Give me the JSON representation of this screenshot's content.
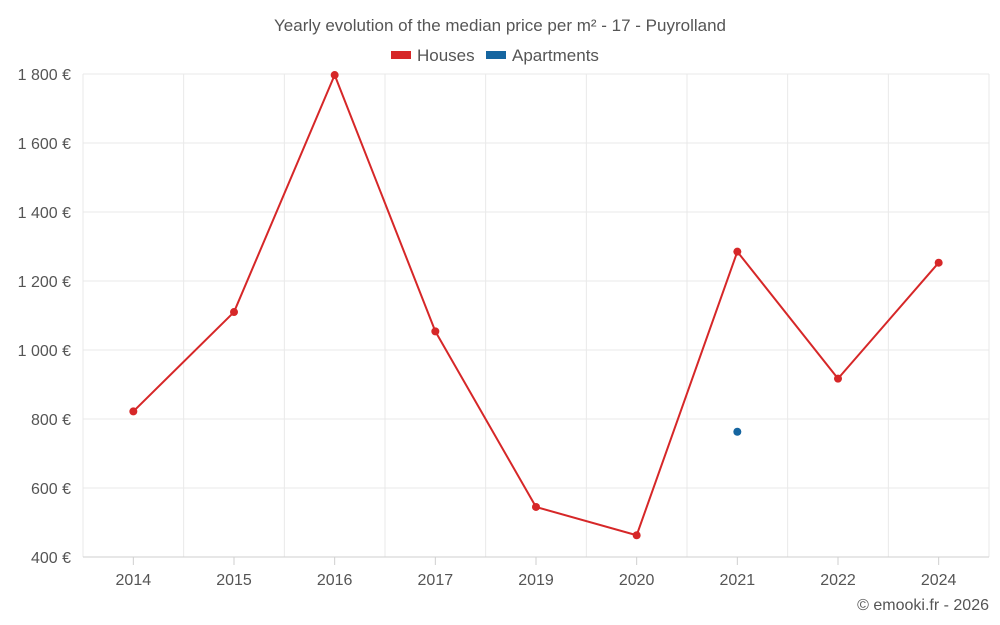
{
  "chart_data": {
    "type": "line",
    "title": "Yearly evolution of the median price per m² - 17 - Puyrolland",
    "xlabel": "",
    "ylabel": "",
    "categories": [
      "2014",
      "2015",
      "2016",
      "2017",
      "2019",
      "2020",
      "2021",
      "2022",
      "2024"
    ],
    "y_ticks": [
      400,
      600,
      800,
      1000,
      1200,
      1400,
      1600,
      1800
    ],
    "y_tick_labels": [
      "400 €",
      "600 €",
      "800 €",
      "1 000 €",
      "1 200 €",
      "1 400 €",
      "1 600 €",
      "1 800 €"
    ],
    "ylim": [
      400,
      1800
    ],
    "grid": true,
    "legend_position": "top-center",
    "series": [
      {
        "name": "Houses",
        "color": "#d62728",
        "values": [
          822,
          1110,
          1797,
          1054,
          545,
          463,
          1285,
          917,
          1253
        ]
      },
      {
        "name": "Apartments",
        "color": "#1565a0",
        "values": [
          null,
          null,
          null,
          null,
          null,
          null,
          763,
          null,
          null
        ]
      }
    ]
  },
  "footer": {
    "credit": "© emooki.fr - 2026"
  }
}
